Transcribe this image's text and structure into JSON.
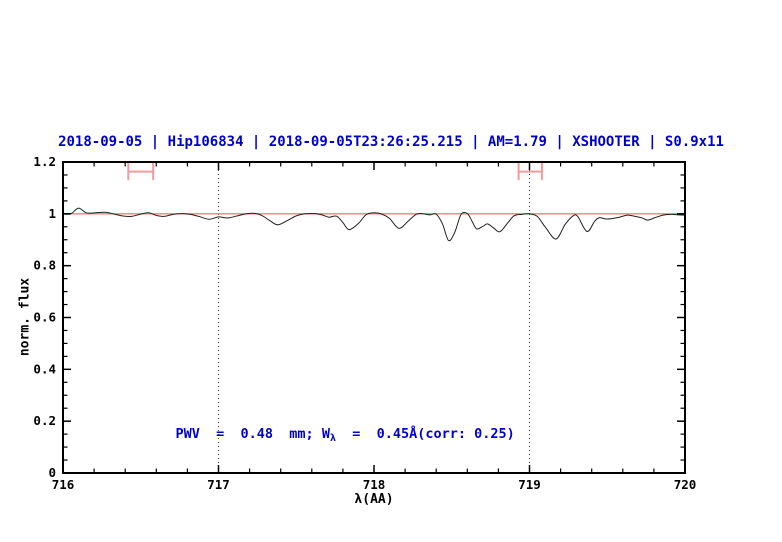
{
  "colors": {
    "title_blue": "#0000cd",
    "axis_black": "#000000",
    "spectrum_line": "#222222",
    "reference_line": "#f87c7c",
    "range_marker": "#f59a9a",
    "dotted_line": "#333333"
  },
  "chart_data": {
    "type": "line",
    "title": "2018-09-05 | Hip106834 | 2018-09-05T23:26:25.215 | AM=1.79 | XSHOOTER | S0.9x11",
    "xlabel": "λ(AA)",
    "ylabel": "norm. flux",
    "xlim": [
      716,
      720
    ],
    "ylim": [
      0,
      1.2
    ],
    "x_major_ticks": [
      716,
      717,
      718,
      719,
      720
    ],
    "x_tick_labels": [
      "716",
      "717",
      "718",
      "719",
      "720"
    ],
    "x_minor_step": 0.2,
    "y_major_ticks": [
      0,
      0.2,
      0.4,
      0.6,
      0.8,
      1,
      1.2
    ],
    "y_tick_labels": [
      "0",
      "0.2",
      "0.4",
      "0.6",
      "0.8",
      "1",
      "1.2"
    ],
    "y_minor_step": 0.05,
    "grid": "off",
    "dotted_vlines": [
      717,
      719
    ],
    "reference_line_y": 1.0,
    "annotation": {
      "pre": "PWV  =  0.48  mm; W",
      "sub": "λ",
      "post": "  =  0.45Å(corr: 0.25)",
      "text": "PWV = 0.48 mm; W_λ = 0.45Å(corr: 0.25)"
    },
    "range_markers": [
      {
        "x_min": 716.42,
        "x_max": 716.58,
        "y": 1.163,
        "cap_half_height": 0.033
      },
      {
        "x_min": 718.93,
        "x_max": 719.08,
        "y": 1.163,
        "cap_half_height": 0.033
      }
    ],
    "series": [
      {
        "name": "spectrum",
        "x": [
          716.0,
          716.05,
          716.1,
          716.15,
          716.21,
          716.27,
          716.33,
          716.38,
          716.44,
          716.5,
          716.55,
          716.6,
          716.65,
          716.7,
          716.76,
          716.82,
          716.88,
          716.94,
          717.0,
          717.06,
          717.12,
          717.18,
          717.23,
          717.28,
          717.33,
          717.38,
          717.44,
          717.5,
          717.56,
          717.62,
          717.67,
          717.71,
          717.76,
          717.8,
          717.84,
          717.9,
          717.95,
          718.0,
          718.05,
          718.1,
          718.16,
          718.22,
          718.27,
          718.31,
          718.36,
          718.4,
          718.44,
          718.48,
          718.52,
          718.56,
          718.6,
          718.63,
          718.66,
          718.7,
          718.73,
          718.77,
          718.81,
          718.86,
          718.9,
          718.95,
          719.0,
          719.05,
          719.1,
          719.17,
          719.23,
          719.28,
          719.31,
          719.37,
          719.42,
          719.45,
          719.5,
          719.57,
          719.63,
          719.68,
          719.72,
          719.76,
          719.81,
          719.86,
          719.91,
          719.96,
          720.0
        ],
        "y": [
          0.999,
          1.0,
          1.022,
          1.004,
          1.004,
          1.006,
          0.999,
          0.992,
          0.99,
          0.999,
          1.004,
          0.994,
          0.99,
          0.997,
          1.001,
          0.998,
          0.989,
          0.979,
          0.988,
          0.984,
          0.992,
          1.0,
          1.002,
          0.993,
          0.974,
          0.958,
          0.973,
          0.992,
          1.0,
          1.001,
          0.995,
          0.987,
          0.991,
          0.966,
          0.939,
          0.963,
          0.997,
          1.004,
          0.999,
          0.982,
          0.944,
          0.972,
          0.998,
          1.001,
          0.996,
          0.999,
          0.962,
          0.897,
          0.93,
          0.998,
          1.001,
          0.972,
          0.942,
          0.952,
          0.961,
          0.945,
          0.931,
          0.965,
          0.992,
          0.998,
          1.0,
          0.99,
          0.95,
          0.903,
          0.96,
          0.992,
          0.99,
          0.932,
          0.972,
          0.985,
          0.98,
          0.986,
          0.995,
          0.99,
          0.985,
          0.976,
          0.986,
          0.995,
          0.998,
          0.996,
          0.995
        ]
      }
    ]
  }
}
